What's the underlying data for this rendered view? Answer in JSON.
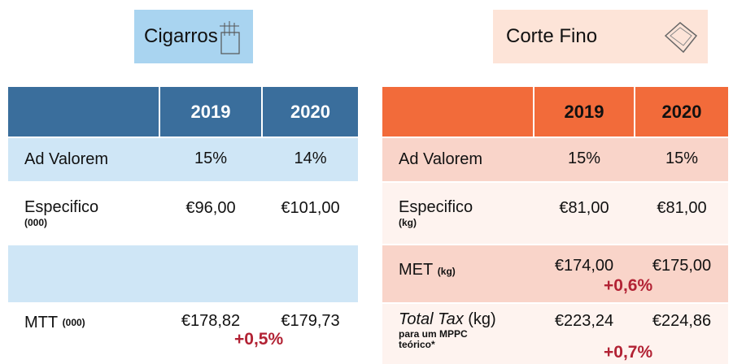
{
  "cigarros": {
    "title": "Cigarros",
    "years": [
      "2019",
      "2020"
    ],
    "rows": [
      {
        "label": "Ad Valorem",
        "values": [
          "15%",
          "14%"
        ]
      },
      {
        "label": "Especifico",
        "unit": "(000)",
        "values": [
          "€96,00",
          "€101,00"
        ]
      },
      {
        "label": "MTT",
        "unit": "(000)",
        "values": [
          "€178,82",
          "€179,73"
        ],
        "change": "+0,5%"
      }
    ]
  },
  "corte_fino": {
    "title": "Corte Fino",
    "years": [
      "2019",
      "2020"
    ],
    "rows": [
      {
        "label": "Ad Valorem",
        "values": [
          "15%",
          "15%"
        ]
      },
      {
        "label": "Especifico",
        "unit": "(kg)",
        "values": [
          "€81,00",
          "€81,00"
        ]
      },
      {
        "label": "MET",
        "unit": "(kg)",
        "values": [
          "€174,00",
          "€175,00"
        ],
        "change": "+0,6%"
      },
      {
        "label": "Total Tax",
        "unit": "(kg)",
        "note": "para um MPPC teórico*",
        "values": [
          "€223,24",
          "€224,86"
        ],
        "change": "+0,7%"
      }
    ]
  }
}
